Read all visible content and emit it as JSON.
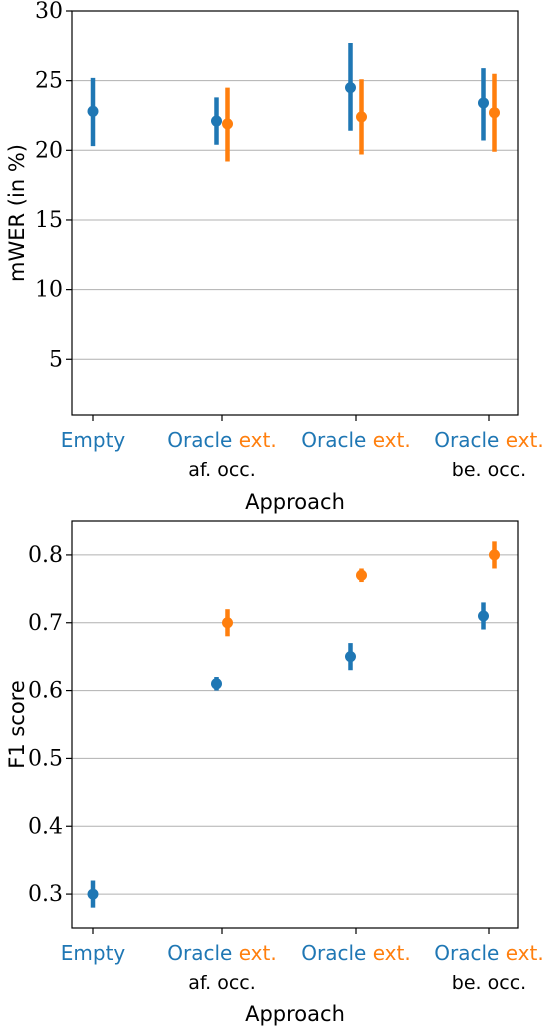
{
  "colors": {
    "blue": "#1f77b4",
    "orange": "#ff7f0e",
    "grid": "#b0b0b0"
  },
  "chart_data": [
    {
      "type": "scatter",
      "error_bars": true,
      "ylabel": "mWER (in %)",
      "xlabel": "Approach",
      "ylim": [
        1,
        30
      ],
      "yticks": [
        5,
        10,
        15,
        20,
        25,
        30
      ],
      "grid": "horizontal",
      "categories": [
        {
          "parts": [
            {
              "text": "Empty",
              "color": "blue"
            }
          ],
          "sublabel": ""
        },
        {
          "parts": [
            {
              "text": "Oracle",
              "color": "blue"
            },
            {
              "text": "ext.",
              "color": "orange"
            }
          ],
          "sublabel": "af. occ."
        },
        {
          "parts": [
            {
              "text": "Oracle",
              "color": "blue"
            },
            {
              "text": "ext.",
              "color": "orange"
            }
          ],
          "sublabel": ""
        },
        {
          "parts": [
            {
              "text": "Oracle",
              "color": "blue"
            },
            {
              "text": "ext.",
              "color": "orange"
            }
          ],
          "sublabel": "be. occ."
        }
      ],
      "series": [
        {
          "color": "blue",
          "values": [
            22.8,
            22.1,
            24.5,
            23.4
          ],
          "err_low": [
            20.3,
            20.4,
            21.4,
            20.7
          ],
          "err_high": [
            25.2,
            23.8,
            27.7,
            25.9
          ]
        },
        {
          "color": "orange",
          "values": [
            null,
            21.9,
            22.4,
            22.7
          ],
          "err_low": [
            null,
            19.2,
            19.7,
            19.9
          ],
          "err_high": [
            null,
            24.5,
            25.1,
            25.5
          ]
        }
      ]
    },
    {
      "type": "scatter",
      "error_bars": true,
      "ylabel": "F1 score",
      "xlabel": "Approach",
      "ylim": [
        0.25,
        0.85
      ],
      "yticks": [
        0.3,
        0.4,
        0.5,
        0.6,
        0.7,
        0.8
      ],
      "grid": "horizontal",
      "categories": [
        {
          "parts": [
            {
              "text": "Empty",
              "color": "blue"
            }
          ],
          "sublabel": ""
        },
        {
          "parts": [
            {
              "text": "Oracle",
              "color": "blue"
            },
            {
              "text": "ext.",
              "color": "orange"
            }
          ],
          "sublabel": "af. occ."
        },
        {
          "parts": [
            {
              "text": "Oracle",
              "color": "blue"
            },
            {
              "text": "ext.",
              "color": "orange"
            }
          ],
          "sublabel": ""
        },
        {
          "parts": [
            {
              "text": "Oracle",
              "color": "blue"
            },
            {
              "text": "ext.",
              "color": "orange"
            }
          ],
          "sublabel": "be. occ."
        }
      ],
      "series": [
        {
          "color": "blue",
          "values": [
            0.3,
            0.61,
            0.65,
            0.71
          ],
          "err_low": [
            0.28,
            0.6,
            0.63,
            0.69
          ],
          "err_high": [
            0.32,
            0.62,
            0.67,
            0.73
          ]
        },
        {
          "color": "orange",
          "values": [
            null,
            0.7,
            0.77,
            0.8
          ],
          "err_low": [
            null,
            0.68,
            0.76,
            0.78
          ],
          "err_high": [
            null,
            0.72,
            0.78,
            0.82
          ]
        }
      ]
    }
  ]
}
